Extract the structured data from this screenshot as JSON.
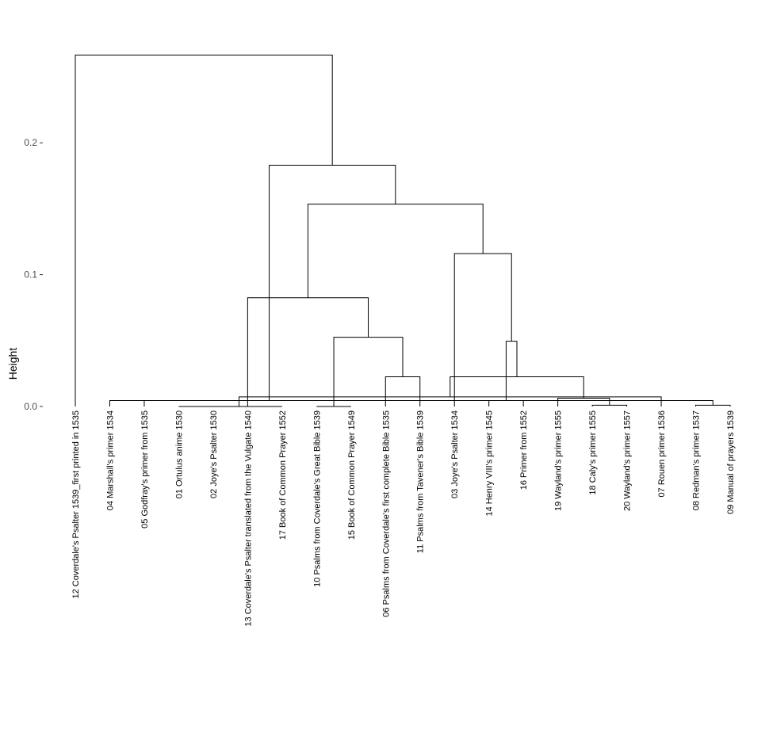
{
  "chart_data": {
    "type": "dendrogram",
    "title": "",
    "xlabel": "",
    "ylabel": "Height",
    "ylim": [
      0,
      0.265
    ],
    "y_ticks": [
      0.0,
      0.1,
      0.2
    ],
    "y_tick_labels": [
      "0.0",
      "0.1",
      "0.2"
    ],
    "grid": false,
    "leaves": [
      "12 Coverdale's Psalter 1539_first printed in 1535",
      "04 Marshall's primer 1534",
      "05 Godfray's primer from 1535",
      "01 Ortulus anime 1530",
      "02 Joye's Psalter 1530",
      "13 Coverdale's Psalter translated from the Vulgate 1540",
      "17 Book of Common Prayer 1552",
      "10 Psalms from Coverdale's Great Bible 1539",
      "15 Book of Common Prayer 1549",
      "06 Psalms from Coverdale's first complete Bible 1535",
      "11 Psalms from Tavener's Bible 1539",
      "03 Joye's Psalter 1534",
      "14 Henry VIII's primer 1545",
      "16 Primer from 1552",
      "19 Wayland's primer 1555",
      "18 Caly's primer 1555",
      "20 Wayland's primer 1557",
      "07 Rouen primer 1536",
      "08 Redman's primer 1537",
      "09 Manual of prayers 1539"
    ],
    "merges": [
      {
        "left": 8,
        "right": 9,
        "height": 0.0
      },
      {
        "left": 4,
        "right": 5,
        "height": 0.0
      },
      {
        "left": 7,
        "right": 22,
        "height": 0.0
      },
      {
        "left": 19,
        "right": 20,
        "height": 0.001
      },
      {
        "left": 16,
        "right": 17,
        "height": 0.001
      },
      {
        "left": 3,
        "right": 24,
        "height": 0.0045
      },
      {
        "left": 2,
        "right": 26,
        "height": 0.0045
      },
      {
        "left": 18,
        "right": 23,
        "height": 0.0073
      },
      {
        "left": 15,
        "right": 25,
        "height": 0.0063
      },
      {
        "left": 13,
        "right": 14,
        "height": 0.0045
      },
      {
        "left": 28,
        "right": 29,
        "height": 0.0225
      },
      {
        "left": 10,
        "right": 11,
        "height": 0.0225
      },
      {
        "left": 21,
        "right": 32,
        "height": 0.0525
      },
      {
        "left": 30,
        "right": 31,
        "height": 0.0495
      },
      {
        "left": 6,
        "right": 33,
        "height": 0.0825
      },
      {
        "left": 12,
        "right": 34,
        "height": 0.116
      },
      {
        "left": 35,
        "right": 36,
        "height": 0.1535
      },
      {
        "left": 27,
        "right": 37,
        "height": 0.183
      },
      {
        "left": 1,
        "right": 38,
        "height": 0.2665
      }
    ]
  }
}
